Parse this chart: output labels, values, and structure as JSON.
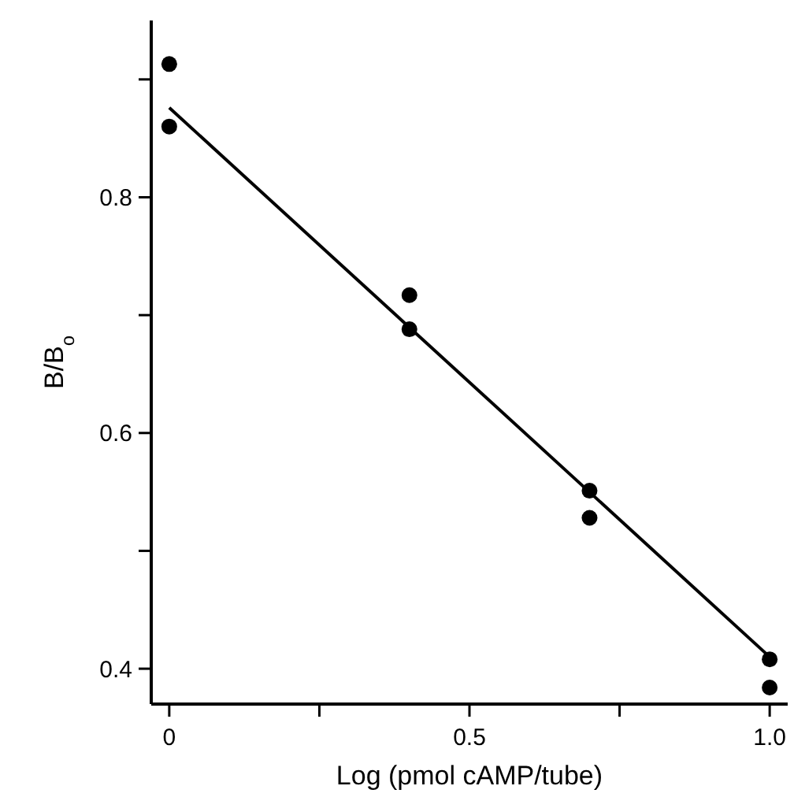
{
  "chart_data": {
    "type": "scatter",
    "xlabel": "Log (pmol cAMP/tube)",
    "ylabel": "B/B$_{o}$",
    "xlim": [
      -0.03,
      1.03
    ],
    "ylim": [
      0.37,
      0.95
    ],
    "xticks": [
      0,
      {
        "value": 0.25,
        "label": null
      },
      0.5,
      {
        "value": 0.75,
        "label": null
      },
      {
        "value": 1,
        "label": "1.0"
      }
    ],
    "yticks": [
      0.4,
      {
        "value": 0.5,
        "label": null
      },
      0.6,
      {
        "value": 0.7,
        "label": null
      },
      0.8,
      {
        "value": 0.9,
        "label": null
      }
    ],
    "grid": false,
    "series": [
      {
        "color": "#000000",
        "marker": "circle",
        "x": [
          0,
          0,
          0.4,
          0.4,
          0.7,
          0.7,
          1,
          1
        ],
        "values": [
          0.913,
          0.86,
          0.717,
          0.688,
          0.551,
          0.528,
          0.408,
          0.384
        ]
      },
      {
        "type": "line",
        "color": "#000000",
        "marker": "none",
        "line_style": "solid",
        "x": [
          0,
          1
        ],
        "values": [
          0.876,
          0.41
        ]
      }
    ]
  }
}
